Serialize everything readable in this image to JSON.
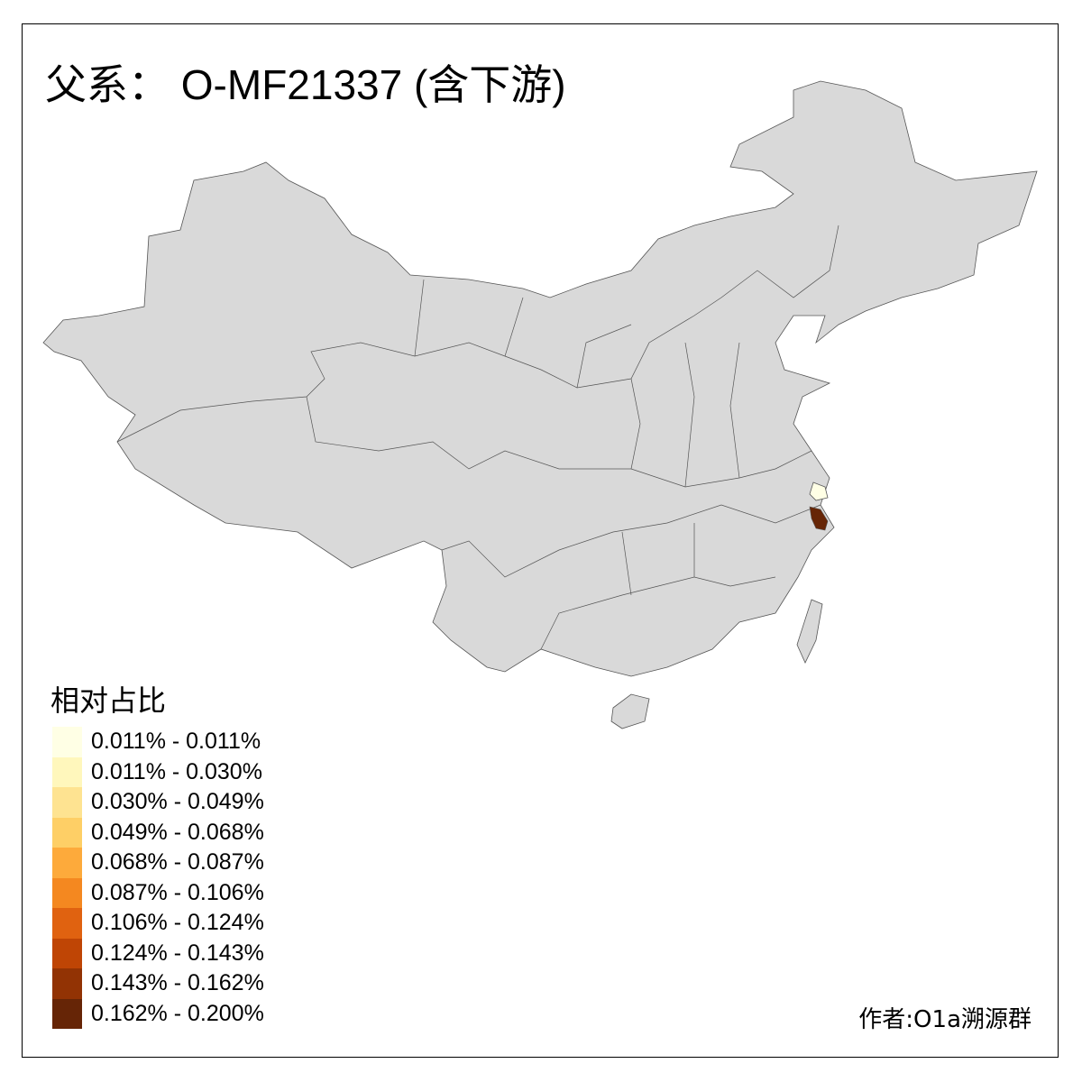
{
  "title": "父系： O-MF21337 (含下游)",
  "legend": {
    "title": "相对占比",
    "items": [
      {
        "label": "0.011% - 0.011%",
        "color": "#FFFFE5"
      },
      {
        "label": "0.011% - 0.030%",
        "color": "#FFF7BC"
      },
      {
        "label": "0.030% - 0.049%",
        "color": "#FEE391"
      },
      {
        "label": "0.049% - 0.068%",
        "color": "#FECF66"
      },
      {
        "label": "0.068% - 0.087%",
        "color": "#FDAA3B"
      },
      {
        "label": "0.087% - 0.106%",
        "color": "#F48820"
      },
      {
        "label": "0.106% - 0.124%",
        "color": "#E06210"
      },
      {
        "label": "0.124% - 0.143%",
        "color": "#BF4505"
      },
      {
        "label": "0.143% - 0.162%",
        "color": "#923304"
      },
      {
        "label": "0.162% - 0.200%",
        "color": "#662506"
      }
    ]
  },
  "map": {
    "base_color": "#D9D9D9",
    "highlighted": [
      {
        "region": "shanghai",
        "color": "#FFFFE5"
      },
      {
        "region": "zhejiang-north",
        "color": "#662506"
      }
    ]
  },
  "credit": "作者:O1a溯源群"
}
